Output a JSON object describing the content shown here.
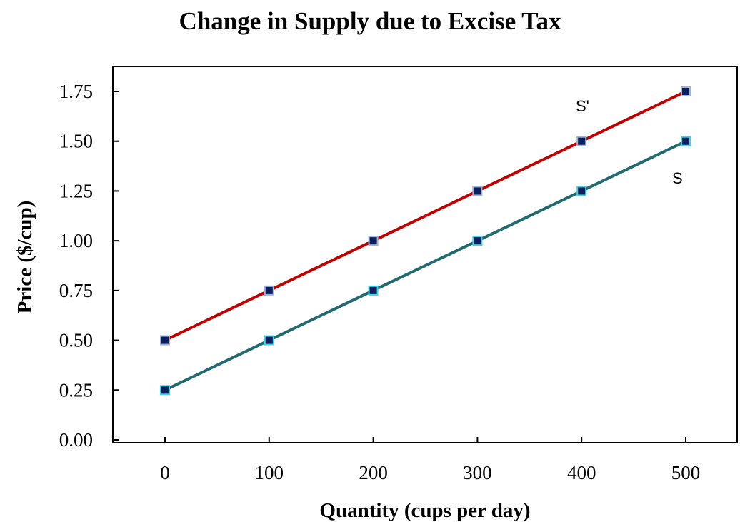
{
  "chart_data": {
    "type": "line",
    "title": "Change in Supply due to Excise Tax",
    "xlabel": "Quantity (cups per day)",
    "ylabel": "Price ($/cup)",
    "x": [
      0,
      100,
      200,
      300,
      400,
      500
    ],
    "xlim": [
      -50,
      550
    ],
    "ylim": [
      0,
      2
    ],
    "xticks": [
      "0",
      "100",
      "200",
      "300",
      "400",
      "500"
    ],
    "yticks": [
      "0.00",
      "0.25",
      "0.50",
      "0.75",
      "1.00",
      "1.25",
      "1.50",
      "1.75"
    ],
    "ytick_values": [
      0,
      0.25,
      0.5,
      0.75,
      1.0,
      1.25,
      1.5,
      1.75
    ],
    "grid": false,
    "series": [
      {
        "name": "S'",
        "values": [
          0.5,
          0.75,
          1.0,
          1.25,
          1.5,
          1.75
        ],
        "line_color": "#c00000",
        "marker_color": "#0b1f5c",
        "marker_edge": "#9fb3d9"
      },
      {
        "name": "S",
        "values": [
          0.25,
          0.5,
          0.75,
          1.0,
          1.25,
          1.5
        ],
        "line_color": "#206a70",
        "marker_color": "#0b1f5c",
        "marker_edge": "#3fd3e6"
      }
    ]
  }
}
